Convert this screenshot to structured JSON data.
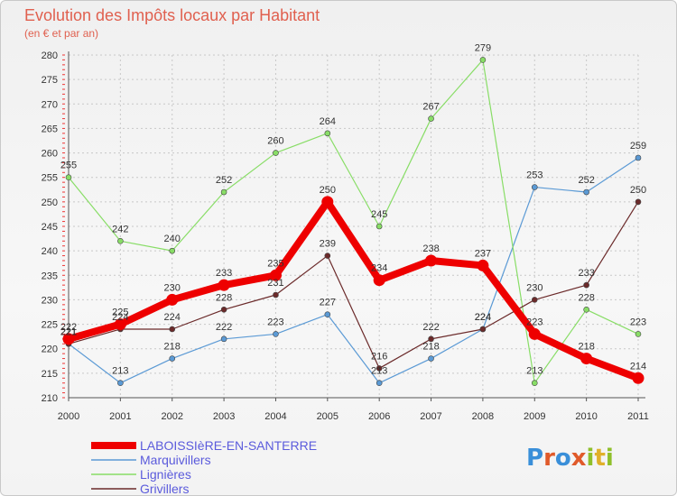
{
  "title": "Evolution des Impôts locaux par Habitant",
  "subtitle": "(en € et par an)",
  "logo": {
    "letters": [
      "P",
      "r",
      "o",
      "x",
      "i",
      "t",
      "i"
    ],
    "colors": [
      "#3a8fd9",
      "#e05a2a",
      "#3a8fd9",
      "#e05a2a",
      "#8fbf2a",
      "#e0b02a",
      "#8fbf2a"
    ]
  },
  "chart_data": {
    "type": "line",
    "title": "Evolution des Impôts locaux par Habitant",
    "subtitle": "(en € et par an)",
    "x": [
      "2000",
      "2001",
      "2002",
      "2003",
      "2004",
      "2005",
      "2006",
      "2007",
      "2008",
      "2009",
      "2010",
      "2011"
    ],
    "ylim": [
      210,
      280
    ],
    "yticks": [
      210,
      215,
      220,
      225,
      230,
      235,
      240,
      245,
      250,
      255,
      260,
      265,
      270,
      275,
      280
    ],
    "grid": true,
    "legend_position": "bottom-left",
    "series": [
      {
        "name": "LABOISSIèRE-EN-SANTERRE",
        "color": "#ee0000",
        "width": 8,
        "values": [
          222,
          225,
          230,
          233,
          235,
          250,
          234,
          238,
          237,
          223,
          218,
          214
        ]
      },
      {
        "name": "Marquivillers",
        "color": "#5b9ad5",
        "width": 1.2,
        "values": [
          221,
          213,
          218,
          222,
          223,
          227,
          213,
          218,
          224,
          253,
          252,
          259
        ]
      },
      {
        "name": "Lignières",
        "color": "#88dd66",
        "width": 1.2,
        "values": [
          255,
          242,
          240,
          252,
          260,
          264,
          245,
          267,
          279,
          213,
          228,
          223
        ]
      },
      {
        "name": "Grivillers",
        "color": "#6b2a2a",
        "width": 1.2,
        "values": [
          221,
          224,
          224,
          228,
          231,
          239,
          216,
          222,
          224,
          230,
          233,
          250
        ]
      }
    ]
  }
}
